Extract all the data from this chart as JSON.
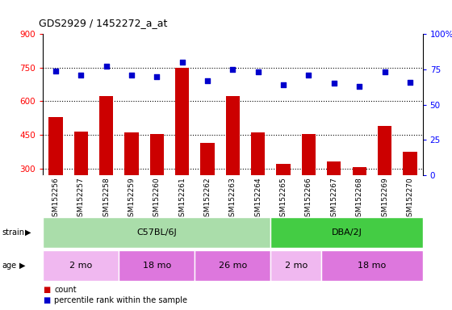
{
  "title": "GDS2929 / 1452272_a_at",
  "samples": [
    "GSM152256",
    "GSM152257",
    "GSM152258",
    "GSM152259",
    "GSM152260",
    "GSM152261",
    "GSM152262",
    "GSM152263",
    "GSM152264",
    "GSM152265",
    "GSM152266",
    "GSM152267",
    "GSM152268",
    "GSM152269",
    "GSM152270"
  ],
  "counts": [
    530,
    465,
    625,
    460,
    452,
    748,
    415,
    625,
    460,
    320,
    455,
    330,
    305,
    490,
    375
  ],
  "percentiles": [
    74,
    71,
    77,
    71,
    70,
    80,
    67,
    75,
    73,
    64,
    71,
    65,
    63,
    73,
    66
  ],
  "ylim_left": [
    270,
    900
  ],
  "ylim_right": [
    0,
    100
  ],
  "yticks_left": [
    300,
    450,
    600,
    750,
    900
  ],
  "yticks_right": [
    0,
    25,
    50,
    75,
    100
  ],
  "bar_color": "#cc0000",
  "dot_color": "#0000cc",
  "strain_groups": [
    {
      "label": "C57BL/6J",
      "start": 0,
      "end": 9,
      "color": "#aaddaa"
    },
    {
      "label": "DBA/2J",
      "start": 9,
      "end": 15,
      "color": "#44cc44"
    }
  ],
  "age_groups": [
    {
      "label": "2 mo",
      "start": 0,
      "end": 3,
      "color": "#f0b8f0"
    },
    {
      "label": "18 mo",
      "start": 3,
      "end": 6,
      "color": "#dd77dd"
    },
    {
      "label": "26 mo",
      "start": 6,
      "end": 9,
      "color": "#dd77dd"
    },
    {
      "label": "2 mo",
      "start": 9,
      "end": 11,
      "color": "#f0b8f0"
    },
    {
      "label": "18 mo",
      "start": 11,
      "end": 15,
      "color": "#dd77dd"
    }
  ],
  "bg_color": "#ffffff",
  "tick_area_color": "#c8c8c8",
  "n_samples": 15
}
